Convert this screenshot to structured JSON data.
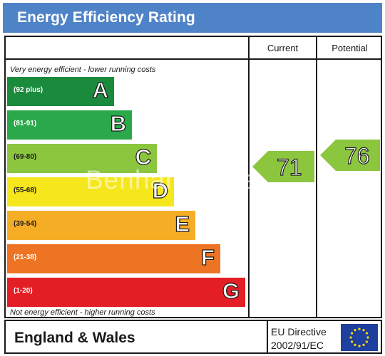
{
  "header": {
    "title": "Energy Efficiency Rating"
  },
  "columns": {
    "current": "Current",
    "potential": "Potential"
  },
  "notes": {
    "top": "Very energy efficient - lower running costs",
    "bottom": "Not energy efficient - higher running costs"
  },
  "watermark": "Benham & Reeves",
  "footer": {
    "region": "England & Wales",
    "directive_line1": "EU Directive",
    "directive_line2": "2002/91/EC"
  },
  "colors": {
    "header": "#4f83c7",
    "A": "#1a8a3c",
    "B": "#2ba84a",
    "C": "#8cc63f",
    "D": "#f5e71c",
    "E": "#f6ad26",
    "F": "#ee7423",
    "G": "#e31e25"
  },
  "chart_data": {
    "type": "table",
    "title": "Energy Efficiency Rating",
    "bands": [
      {
        "letter": "A",
        "range": "(92 plus)"
      },
      {
        "letter": "B",
        "range": "(81-91)"
      },
      {
        "letter": "C",
        "range": "(69-80)"
      },
      {
        "letter": "D",
        "range": "(55-68)"
      },
      {
        "letter": "E",
        "range": "(39-54)"
      },
      {
        "letter": "F",
        "range": "(21-38)"
      },
      {
        "letter": "G",
        "range": "(1-20)"
      }
    ],
    "current": {
      "value": 71,
      "band": "C"
    },
    "potential": {
      "value": 76,
      "band": "C"
    }
  }
}
